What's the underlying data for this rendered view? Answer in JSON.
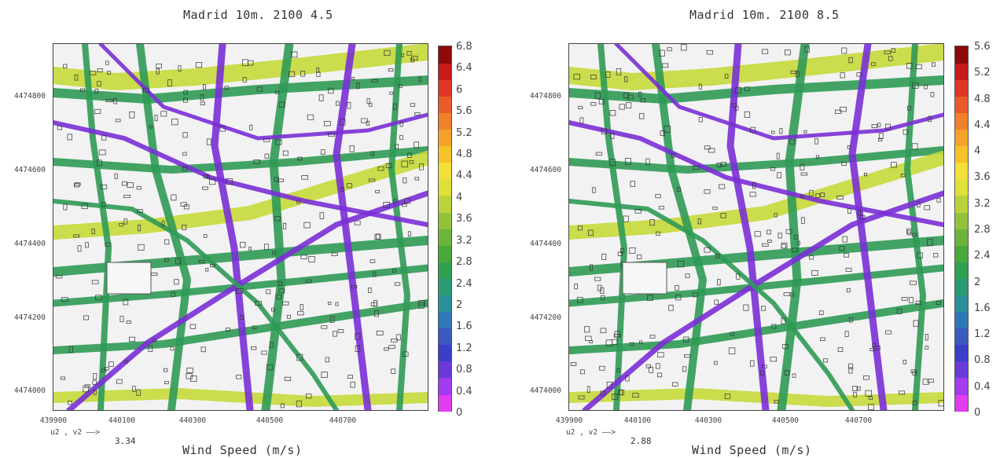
{
  "panels": [
    {
      "title": "Madrid 10m. 2100 4.5",
      "y_ticks": [
        "4474800",
        "4474600",
        "4474400",
        "4474200",
        "4474000"
      ],
      "x_ticks": [
        "439900",
        "440100",
        "440300",
        "440500",
        "440700"
      ],
      "vector_key": "u2 , v2 ——>",
      "vector_value": "3.34",
      "xtitle": "Wind Speed (m/s)",
      "colorbar_ticks": [
        "6.8",
        "6.4",
        "6",
        "5.6",
        "5.2",
        "4.8",
        "4.4",
        "4",
        "3.6",
        "3.2",
        "2.8",
        "2.4",
        "2",
        "1.6",
        "1.2",
        "0.8",
        "0.4",
        "0"
      ]
    },
    {
      "title": "Madrid 10m. 2100 8.5",
      "y_ticks": [
        "4474800",
        "4474600",
        "4474400",
        "4474200",
        "4474000"
      ],
      "x_ticks": [
        "439900",
        "440100",
        "440300",
        "440500",
        "440700"
      ],
      "vector_key": "u2 , v2 ——>",
      "vector_value": "2.88",
      "xtitle": "Wind Speed (m/s)",
      "colorbar_ticks": [
        "5.6",
        "5.2",
        "4.8",
        "4.4",
        "4",
        "3.6",
        "3.2",
        "2.8",
        "2.4",
        "2",
        "1.6",
        "1.2",
        "0.8",
        "0.4",
        "0"
      ]
    }
  ],
  "colors": {
    "map_background": "#f2f2f2",
    "street_low": "#7a2fd6",
    "street_mid": "#2f9a55",
    "street_high": "#c7d93a",
    "colorbar_scale": [
      "#e23cf0",
      "#a23cf0",
      "#6a3ad8",
      "#3a3ec8",
      "#3a5ac0",
      "#2f78b8",
      "#2a8f9a",
      "#2a9a72",
      "#2ea050",
      "#48a83a",
      "#6cb53a",
      "#92c23a",
      "#bcd23a",
      "#e0e03a",
      "#f5e03a",
      "#f5c22a",
      "#f5a22a",
      "#f0802a",
      "#ea5a28",
      "#e03628",
      "#c81a1a",
      "#8c0a0a"
    ]
  }
}
